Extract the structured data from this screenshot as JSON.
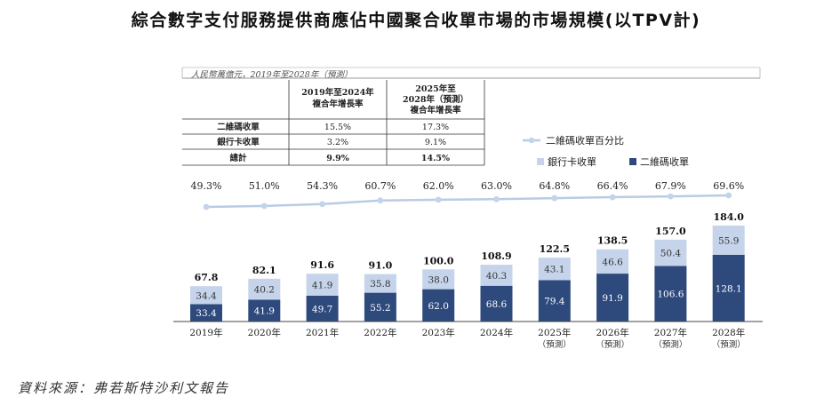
{
  "title": "綜合數字支付服務提供商應佔中國聚合收單市場的市場規模(以TPV計)",
  "unit_note": "人民幣萬億元，2019年至2028年（預測）",
  "source": "資料來源：弗若斯特沙利文報告",
  "cagr_table": {
    "header_1": [
      "2019年至2024年",
      "複合年增長率"
    ],
    "header_2": [
      "2025年至",
      "2028年（預測）",
      "複合年增長率"
    ],
    "rows": [
      {
        "label": "二維碼收單",
        "v1": "15.5%",
        "v2": "17.3%",
        "bold": false
      },
      {
        "label": "銀行卡收單",
        "v1": "3.2%",
        "v2": "9.1%",
        "bold": false
      },
      {
        "label": "總計",
        "v1": "9.9%",
        "v2": "14.5%",
        "bold": true
      }
    ]
  },
  "legend": {
    "line": "二維碼收單百分比",
    "bank": "銀行卡收單",
    "qr": "二維碼收單"
  },
  "colors": {
    "qr": "#2e4a7d",
    "bank": "#c5d4ea",
    "line": "#b8cce6",
    "line_marker": "#c3d3ea"
  },
  "chart_data": {
    "type": "bar",
    "stacked": true,
    "categories": [
      "2019年",
      "2020年",
      "2021年",
      "2022年",
      "2023年",
      "2024年",
      "2025年",
      "2026年",
      "2027年",
      "2028年"
    ],
    "category_sublabels": [
      "",
      "",
      "",
      "",
      "",
      "",
      "（預測）",
      "（預測）",
      "（預測）",
      "（預測）"
    ],
    "series": [
      {
        "name": "二維碼收單",
        "values": [
          33.4,
          41.9,
          49.7,
          55.2,
          62.0,
          68.6,
          79.4,
          91.9,
          106.6,
          128.1
        ]
      },
      {
        "name": "銀行卡收單",
        "values": [
          34.4,
          40.2,
          41.9,
          35.8,
          38.0,
          40.3,
          43.1,
          46.6,
          50.4,
          55.9
        ]
      }
    ],
    "totals": [
      67.8,
      82.1,
      91.6,
      91.0,
      100.0,
      108.9,
      122.5,
      138.5,
      157.0,
      184.0
    ],
    "total_labels": [
      "67.8",
      "82.1",
      "91.6",
      "91.0",
      "100.0",
      "108.9",
      "122.5",
      "138.5",
      "157.0",
      "184.0"
    ],
    "qr_labels": [
      "33.4",
      "41.9",
      "49.7",
      "55.2",
      "62.0",
      "68.6",
      "79.4",
      "91.9",
      "106.6",
      "128.1"
    ],
    "bank_labels": [
      "34.4",
      "40.2",
      "41.9",
      "35.8",
      "38.0",
      "40.3",
      "43.1",
      "46.6",
      "50.4",
      "55.9"
    ],
    "line_series": {
      "name": "二維碼收單百分比",
      "values": [
        49.3,
        51.0,
        54.3,
        60.7,
        62.0,
        63.0,
        64.8,
        66.4,
        67.9,
        69.6
      ],
      "labels": [
        "49.3%",
        "51.0%",
        "54.3%",
        "60.7%",
        "62.0%",
        "63.0%",
        "64.8%",
        "66.4%",
        "67.9%",
        "69.6%"
      ]
    },
    "ylim": [
      0,
      190
    ]
  }
}
